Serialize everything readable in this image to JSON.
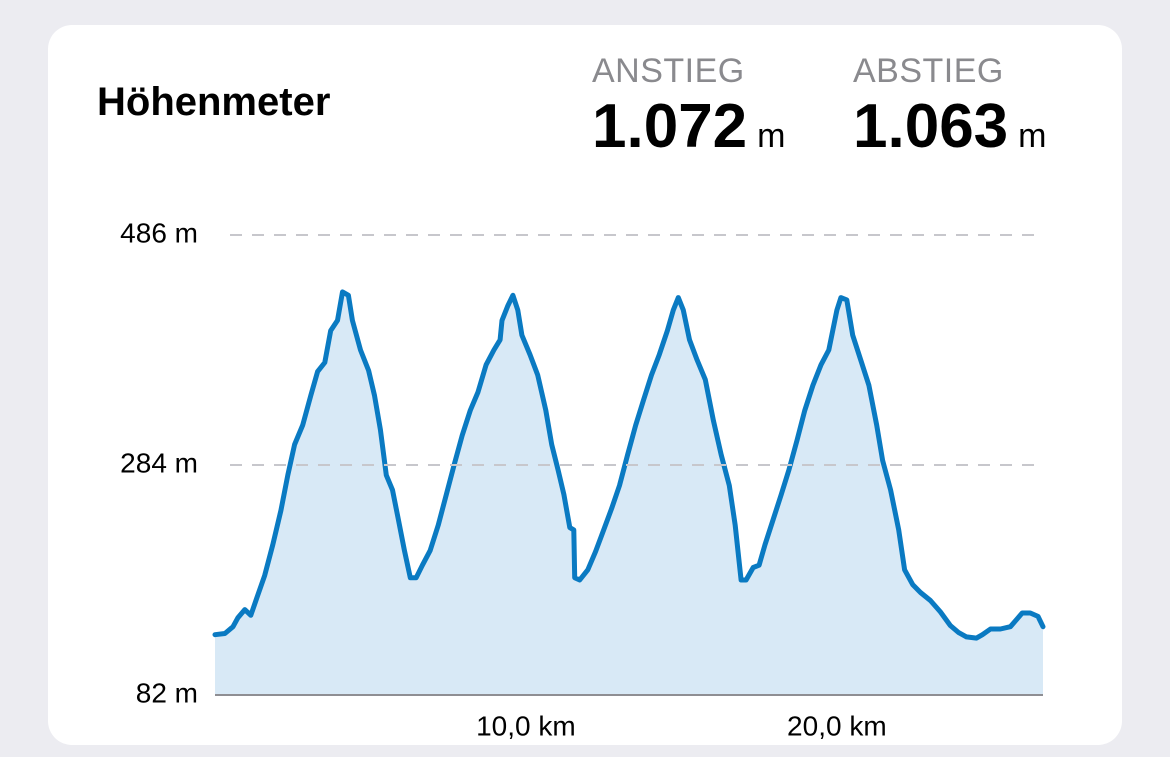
{
  "stats": [
    {
      "label": "ANSTIEG",
      "value": "1.072",
      "unit": "m"
    },
    {
      "label": "ABSTIEG",
      "value": "1.063",
      "unit": "m"
    }
  ],
  "chart_data": {
    "type": "area",
    "title": "Höhenmeter",
    "x": [
      0,
      0.32,
      0.58,
      0.74,
      0.96,
      1.15,
      1.38,
      1.6,
      1.86,
      2.12,
      2.34,
      2.56,
      2.82,
      3.08,
      3.3,
      3.53,
      3.72,
      3.94,
      4.1,
      4.29,
      4.42,
      4.68,
      4.94,
      5.13,
      5.32,
      5.51,
      5.71,
      5.9,
      6.09,
      6.28,
      6.47,
      6.67,
      6.92,
      7.18,
      7.44,
      7.69,
      7.95,
      8.21,
      8.46,
      8.72,
      8.97,
      9.17,
      9.23,
      9.42,
      9.58,
      9.74,
      9.87,
      10.13,
      10.38,
      10.64,
      10.83,
      11.03,
      11.22,
      11.41,
      11.54,
      11.57,
      11.73,
      11.99,
      12.24,
      12.5,
      12.76,
      13.01,
      13.27,
      13.53,
      13.78,
      14.04,
      14.29,
      14.55,
      14.74,
      14.9,
      15.06,
      15.26,
      15.51,
      15.77,
      16.03,
      16.28,
      16.54,
      16.73,
      16.92,
      17.08,
      17.31,
      17.5,
      17.69,
      17.95,
      18.21,
      18.46,
      18.72,
      18.97,
      19.23,
      19.49,
      19.74,
      20.0,
      20.13,
      20.32,
      20.51,
      20.77,
      21.03,
      21.28,
      21.47,
      21.73,
      21.99,
      22.18,
      22.44,
      22.69,
      23.01,
      23.33,
      23.65,
      23.91,
      24.17,
      24.49,
      24.68,
      24.94,
      25.26,
      25.58,
      25.77,
      25.96,
      26.22,
      26.47,
      26.63
    ],
    "y": [
      135,
      136,
      142,
      150,
      157,
      152,
      170,
      187,
      214,
      244,
      275,
      302,
      319,
      345,
      366,
      374,
      402,
      411,
      436,
      433,
      411,
      385,
      367,
      345,
      315,
      275,
      262,
      236,
      209,
      185,
      185,
      196,
      209,
      231,
      258,
      284,
      310,
      332,
      348,
      372,
      385,
      394,
      411,
      424,
      433,
      420,
      398,
      381,
      363,
      332,
      302,
      280,
      258,
      229,
      227,
      185,
      183,
      192,
      208,
      227,
      246,
      266,
      293,
      319,
      341,
      363,
      381,
      402,
      420,
      431,
      420,
      394,
      376,
      359,
      323,
      293,
      266,
      231,
      183,
      183,
      194,
      196,
      214,
      236,
      258,
      280,
      306,
      332,
      354,
      372,
      385,
      420,
      431,
      429,
      398,
      376,
      354,
      319,
      288,
      262,
      227,
      192,
      179,
      172,
      165,
      155,
      143,
      137,
      133,
      132,
      135,
      140,
      140,
      142,
      148,
      154,
      154,
      151,
      142
    ],
    "color": "#0a7ac2",
    "fill": "#d8e9f6",
    "xlim": [
      0,
      26.63
    ],
    "ylim": [
      82,
      486
    ],
    "xticks": [
      {
        "value": 10,
        "label": "10,0 km"
      },
      {
        "value": 20,
        "label": "20,0 km"
      }
    ],
    "yticks": [
      {
        "value": 82,
        "label": "82 m"
      },
      {
        "value": 284,
        "label": "284 m"
      },
      {
        "value": 486,
        "label": "486 m"
      }
    ],
    "grid": true
  }
}
